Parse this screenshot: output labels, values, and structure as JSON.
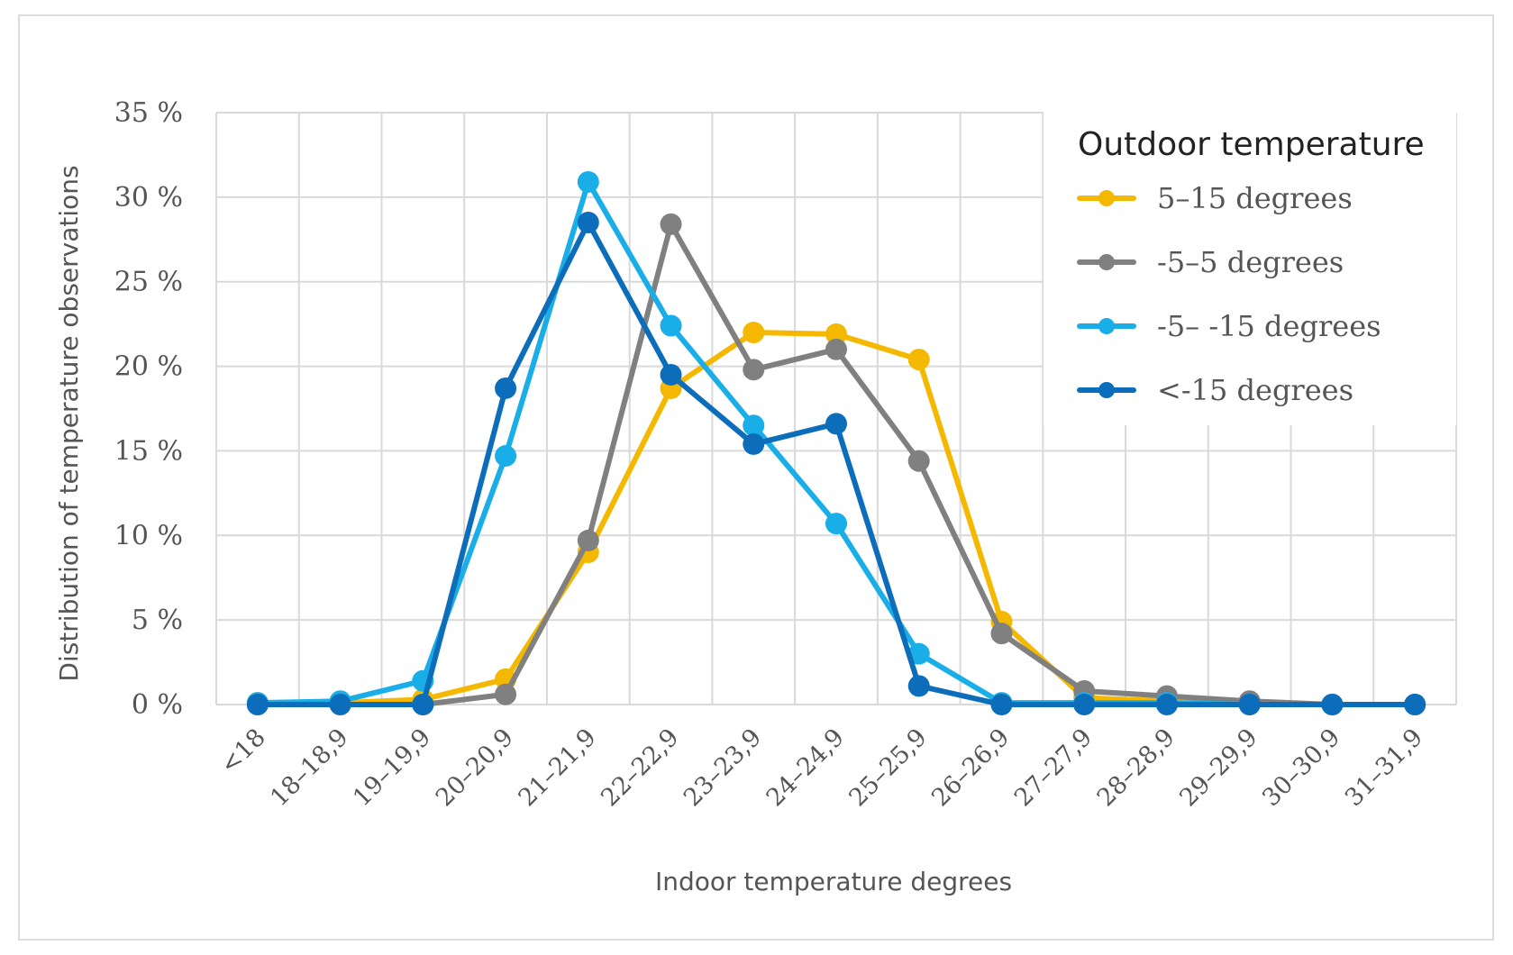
{
  "chart_data": {
    "type": "line",
    "title": "",
    "xlabel": "Indoor temperature degrees",
    "ylabel": "Distribution of temperature observations",
    "ylim": [
      0,
      35
    ],
    "y_ticks": [
      "0 %",
      "5 %",
      "10 %",
      "15 %",
      "20 %",
      "25 %",
      "30 %",
      "35 %"
    ],
    "y_tick_values": [
      0,
      5,
      10,
      15,
      20,
      25,
      30,
      35
    ],
    "grid": true,
    "legend_position": "top-right",
    "legend_title": "Outdoor temperature",
    "categories": [
      "<18",
      "18–18,9",
      "19–19,9",
      "20–20,9",
      "21–21,9",
      "22–22,9",
      "23–23,9",
      "24–24,9",
      "25–25,9",
      "26–26,9",
      "27–27,9",
      "28–28,9",
      "29–29,9",
      "30–30,9",
      "31–31,9"
    ],
    "series": [
      {
        "name": "5–15 degrees",
        "color": "#F5B800",
        "values": [
          0.1,
          0.1,
          0.3,
          1.5,
          9.0,
          18.7,
          22.0,
          21.9,
          20.4,
          4.9,
          0.4,
          0.2,
          0.1,
          0.0,
          0.0
        ]
      },
      {
        "name": "-5–5 degrees",
        "color": "#808080",
        "values": [
          0.0,
          0.0,
          0.0,
          0.6,
          9.7,
          28.4,
          19.8,
          21.0,
          14.4,
          4.2,
          0.8,
          0.5,
          0.2,
          0.0,
          0.0
        ]
      },
      {
        "name": "-5– -15 degrees",
        "color": "#1AAEE8",
        "values": [
          0.1,
          0.2,
          1.4,
          14.7,
          30.9,
          22.4,
          16.5,
          10.7,
          3.0,
          0.1,
          0.1,
          0.1,
          0.0,
          0.0,
          0.0
        ]
      },
      {
        "name": "<-15 degrees",
        "color": "#0C6EBA",
        "values": [
          0.0,
          0.0,
          0.0,
          18.7,
          28.5,
          19.5,
          15.4,
          16.6,
          1.1,
          0.0,
          0.0,
          0.0,
          0.0,
          0.0,
          0.0
        ]
      }
    ]
  }
}
